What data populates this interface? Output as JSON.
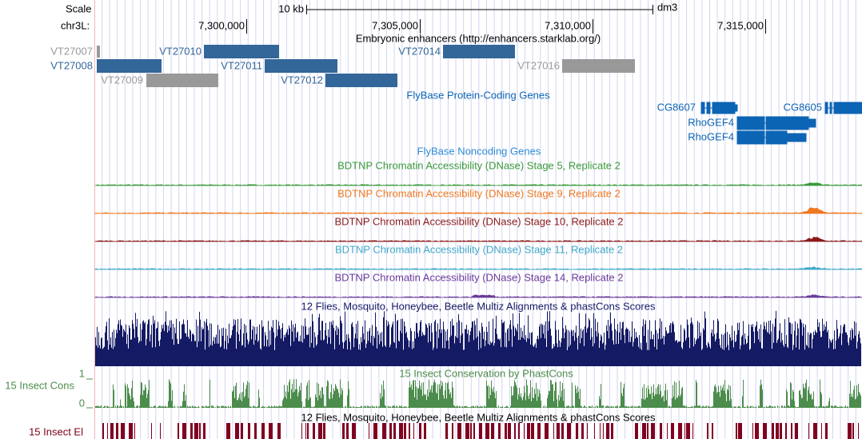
{
  "scale": {
    "label": "Scale",
    "size": "10 kb",
    "assembly": "dm3"
  },
  "position": {
    "chrom": "chr3L:",
    "ticks": [
      "7,300,000",
      "7,305,000",
      "7,310,000",
      "7,315,000"
    ]
  },
  "enhancers": {
    "title": "Embryonic enhancers (http://enhancers.starklab.org/)",
    "items": [
      "VT27007",
      "VT27008",
      "VT27009",
      "VT27010",
      "VT27011",
      "VT27012",
      "VT27014",
      "VT27016"
    ]
  },
  "genes": {
    "title": "FlyBase Protein-Coding Genes",
    "items": [
      "CG8607",
      "CG8605",
      "RhoGEF4",
      "RhoGEF4"
    ]
  },
  "noncoding": {
    "title": "FlyBase Noncoding Genes"
  },
  "dnase": [
    "BDTNP Chromatin Accessibility (DNase) Stage 5, Replicate 2",
    "BDTNP Chromatin Accessibility (DNase) Stage 9, Replicate 2",
    "BDTNP Chromatin Accessibility (DNase) Stage 10, Replicate 2",
    "BDTNP Chromatin Accessibility (DNase) Stage 11, Replicate 2",
    "BDTNP Chromatin Accessibility (DNase) Stage 14, Replicate 2"
  ],
  "multiz": {
    "title": "12 Flies, Mosquito, Honeybee, Beetle Multiz Alignments & phastCons Scores"
  },
  "cons": {
    "title": "15 Insect Conservation by PhastCons",
    "label": "15 Insect Cons",
    "max": 1,
    "min": 0
  },
  "elements": {
    "label": "15 Insect El",
    "title": "12 Flies, Mosquito, Honeybee, Beetle Multiz Alignments & phastCons Scores"
  }
}
